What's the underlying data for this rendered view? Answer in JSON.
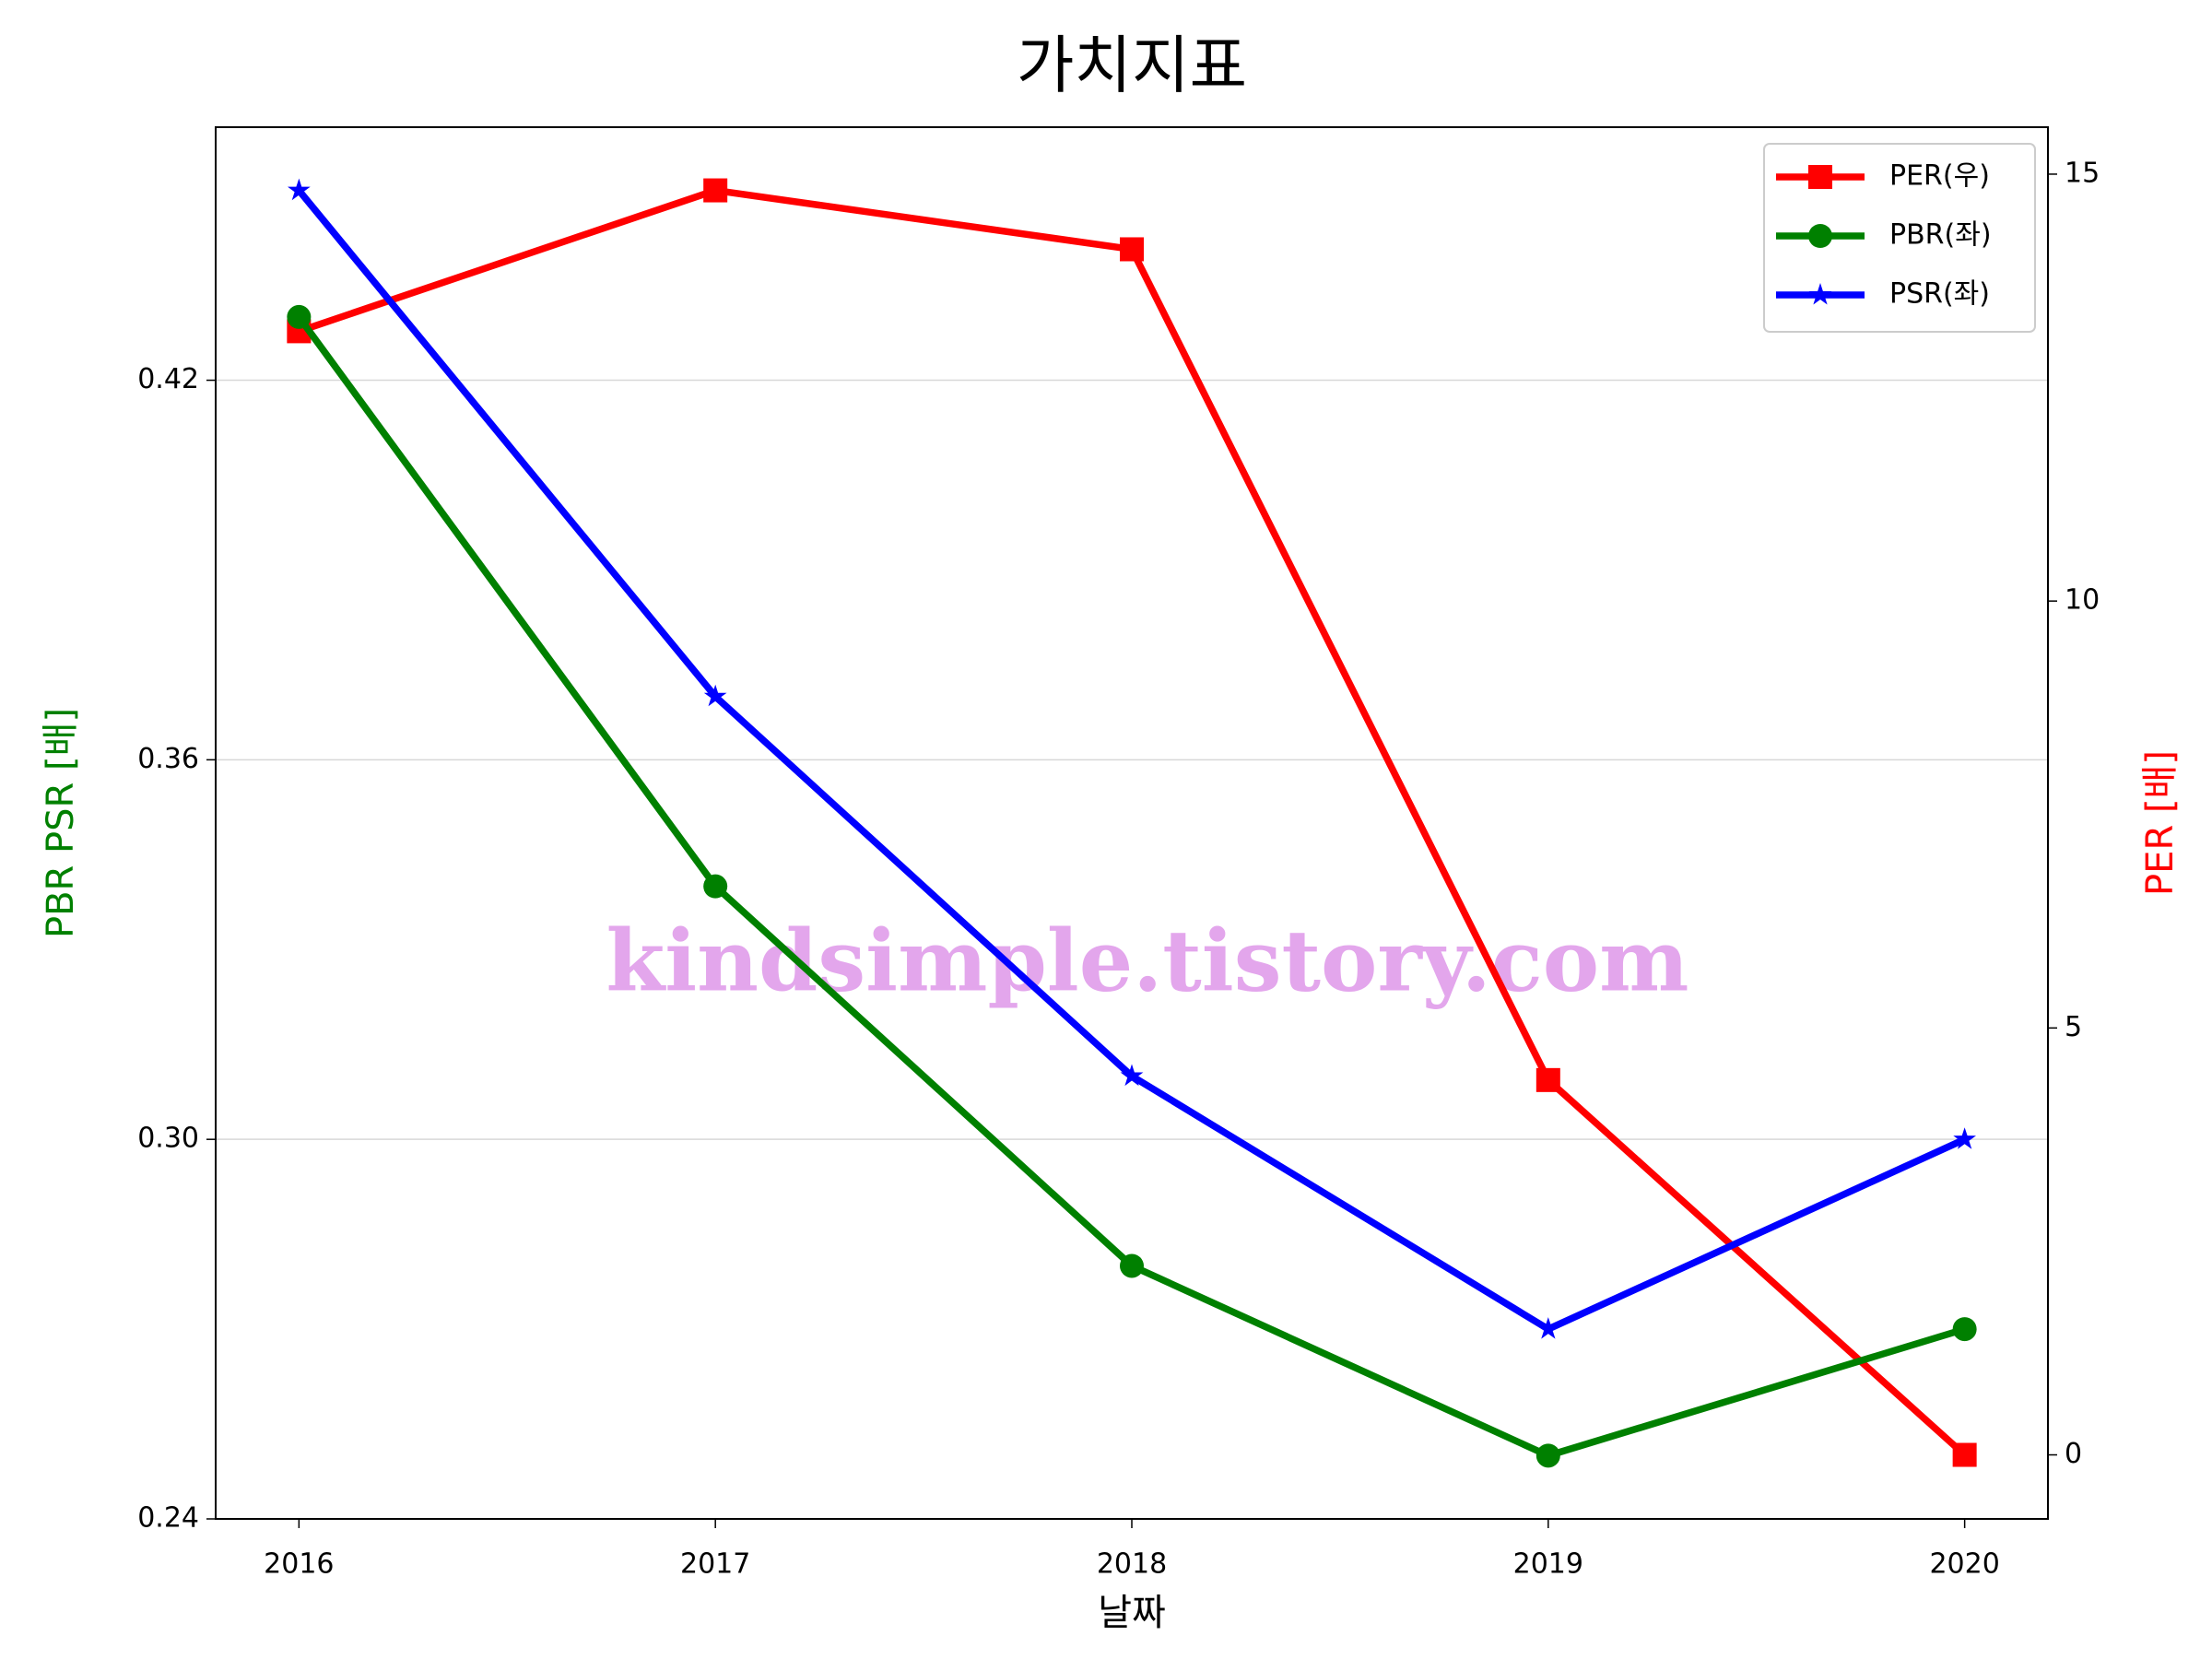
{
  "chart_data": {
    "type": "line",
    "title": "가치지표",
    "xlabel": "날짜",
    "ylabel": "PBR PSR [배]",
    "y2label": "PER [배]",
    "watermark": "kindsimple.tistory.com",
    "x": [
      2016,
      2017,
      2018,
      2019,
      2020
    ],
    "xlim": [
      2015.8,
      2020.2
    ],
    "xticks": [
      2016,
      2017,
      2018,
      2019,
      2020
    ],
    "ylim": [
      0.24,
      0.46
    ],
    "yticks": [
      0.24,
      {
        "value": 0.3,
        "label": "0.30"
      },
      0.36,
      0.42
    ],
    "y2lim": [
      -0.75,
      15.55
    ],
    "y2ticks": [
      0,
      5,
      10,
      15
    ],
    "grid": true,
    "legend": "upper right",
    "series": [
      {
        "name": "PER(우)",
        "color": "#ff0000",
        "marker": "square",
        "axis": "y2",
        "values": [
          13.16,
          14.81,
          14.12,
          4.39,
          0
        ]
      },
      {
        "name": "PBR(좌)",
        "color": "#008000",
        "marker": "circle",
        "values": [
          0.43,
          0.34,
          0.28,
          0.25,
          0.27
        ]
      },
      {
        "name": "PSR(좌)",
        "color": "#0000ff",
        "marker": "star",
        "values": [
          0.45,
          0.37,
          0.31,
          0.27,
          0.3
        ]
      }
    ]
  }
}
